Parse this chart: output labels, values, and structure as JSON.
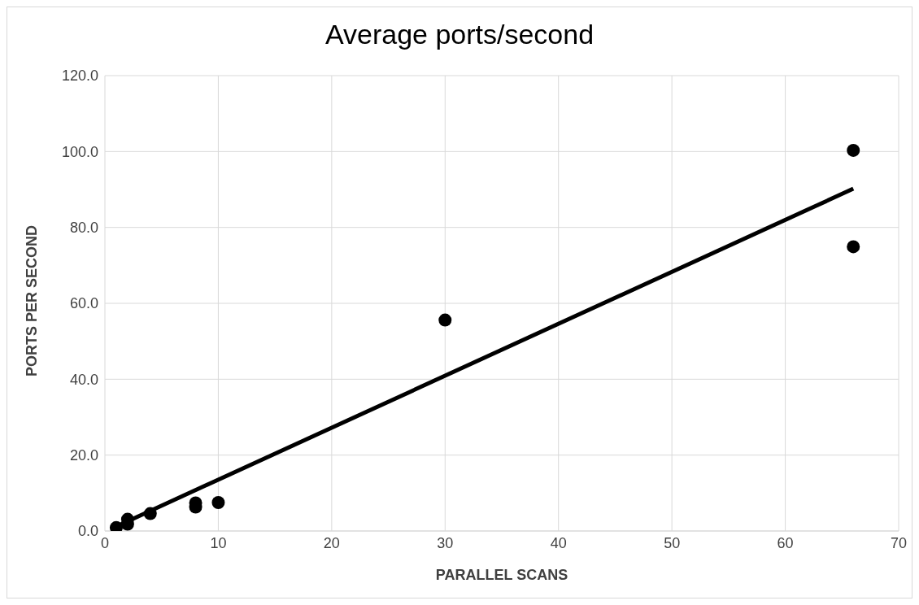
{
  "chart_data": {
    "type": "scatter",
    "title": "Average ports/second",
    "xlabel": "PARALLEL SCANS",
    "ylabel": "PORTS PER SECOND",
    "xlim": [
      0,
      70
    ],
    "xticks": [
      0,
      10,
      20,
      30,
      40,
      50,
      60,
      70
    ],
    "ylim": [
      0,
      120
    ],
    "yticks": [
      {
        "value": 0,
        "label": "0.0"
      },
      {
        "value": 20,
        "label": "20.0"
      },
      {
        "value": 40,
        "label": "40.0"
      },
      {
        "value": 60,
        "label": "60.0"
      },
      {
        "value": 80,
        "label": "80.0"
      },
      {
        "value": 100,
        "label": "100.0"
      },
      {
        "value": 120,
        "label": "120.0"
      }
    ],
    "grid": true,
    "marker": "circle",
    "series": [
      {
        "color": "#000000",
        "x": [
          1,
          2,
          2,
          4,
          8,
          8,
          10,
          30,
          66,
          66
        ],
        "values": [
          0.9,
          3.1,
          1.8,
          4.6,
          7.4,
          6.3,
          7.5,
          55.6,
          100.3,
          74.9
        ]
      },
      {
        "type": "line",
        "color": "#000000",
        "x": [
          1,
          66
        ],
        "values": [
          1.2,
          90.2
        ],
        "marker": "none",
        "line_style": "solid"
      }
    ]
  }
}
